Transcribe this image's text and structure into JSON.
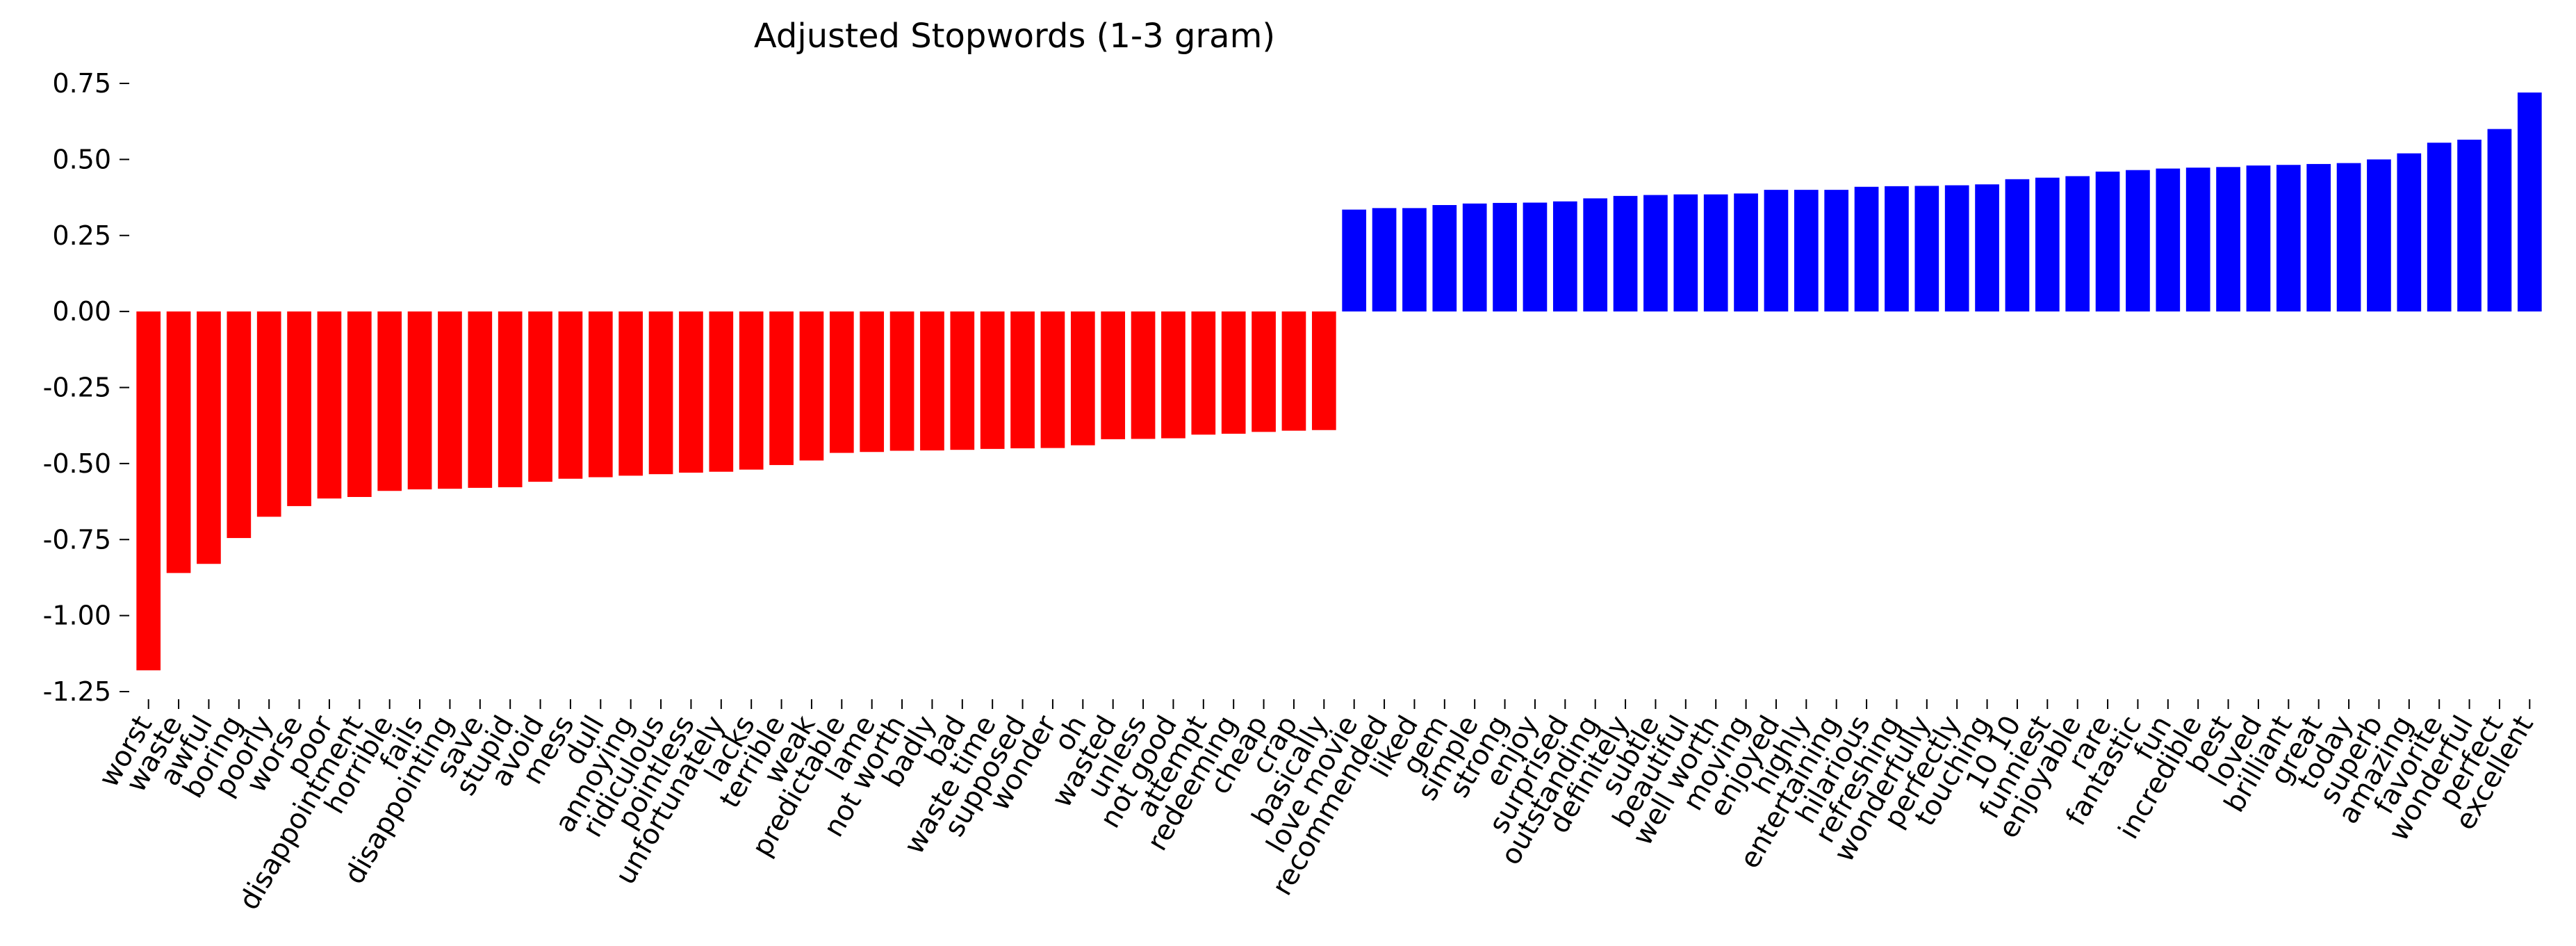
{
  "chart_data": {
    "type": "bar",
    "title": "Adjusted Stopwords (1-3 gram)",
    "xlabel": "",
    "ylabel": "",
    "ylim": [
      -1.25,
      0.75
    ],
    "yticks": [
      0.75,
      0.5,
      0.25,
      0.0,
      -0.25,
      -0.5,
      -0.75,
      -1.0,
      -1.25
    ],
    "grid": false,
    "colors": {
      "negative": "#ff0000",
      "positive": "#0000ff"
    },
    "categories": [
      "worst",
      "waste",
      "awful",
      "boring",
      "poorly",
      "worse",
      "poor",
      "disappointment",
      "horrible",
      "fails",
      "disappointing",
      "save",
      "stupid",
      "avoid",
      "mess",
      "dull",
      "annoying",
      "ridiculous",
      "pointless",
      "unfortunately",
      "lacks",
      "terrible",
      "weak",
      "predictable",
      "lame",
      "not worth",
      "badly",
      "bad",
      "waste time",
      "supposed",
      "wonder",
      "oh",
      "wasted",
      "unless",
      "not good",
      "attempt",
      "redeeming",
      "cheap",
      "crap",
      "basically",
      "love movie",
      "recommended",
      "liked",
      "gem",
      "simple",
      "strong",
      "enjoy",
      "surprised",
      "outstanding",
      "definitely",
      "subtle",
      "beautiful",
      "well worth",
      "moving",
      "enjoyed",
      "highly",
      "entertaining",
      "hilarious",
      "refreshing",
      "wonderfully",
      "perfectly",
      "touching",
      "10 10",
      "funniest",
      "enjoyable",
      "rare",
      "fantastic",
      "fun",
      "incredible",
      "best",
      "loved",
      "brilliant",
      "great",
      "today",
      "superb",
      "amazing",
      "favorite",
      "wonderful",
      "perfect",
      "excellent"
    ],
    "values": [
      -1.18,
      -0.86,
      -0.83,
      -0.745,
      -0.675,
      -0.64,
      -0.615,
      -0.61,
      -0.59,
      -0.585,
      -0.583,
      -0.58,
      -0.578,
      -0.56,
      -0.55,
      -0.545,
      -0.54,
      -0.535,
      -0.53,
      -0.527,
      -0.52,
      -0.505,
      -0.49,
      -0.465,
      -0.462,
      -0.458,
      -0.457,
      -0.455,
      -0.452,
      -0.45,
      -0.449,
      -0.44,
      -0.42,
      -0.419,
      -0.417,
      -0.405,
      -0.402,
      -0.396,
      -0.392,
      -0.39,
      0.335,
      0.34,
      0.34,
      0.35,
      0.355,
      0.357,
      0.358,
      0.362,
      0.372,
      0.38,
      0.383,
      0.385,
      0.385,
      0.388,
      0.4,
      0.4,
      0.4,
      0.41,
      0.412,
      0.413,
      0.415,
      0.418,
      0.435,
      0.44,
      0.445,
      0.46,
      0.465,
      0.47,
      0.473,
      0.475,
      0.48,
      0.482,
      0.485,
      0.488,
      0.5,
      0.52,
      0.555,
      0.565,
      0.6,
      0.72
    ]
  }
}
